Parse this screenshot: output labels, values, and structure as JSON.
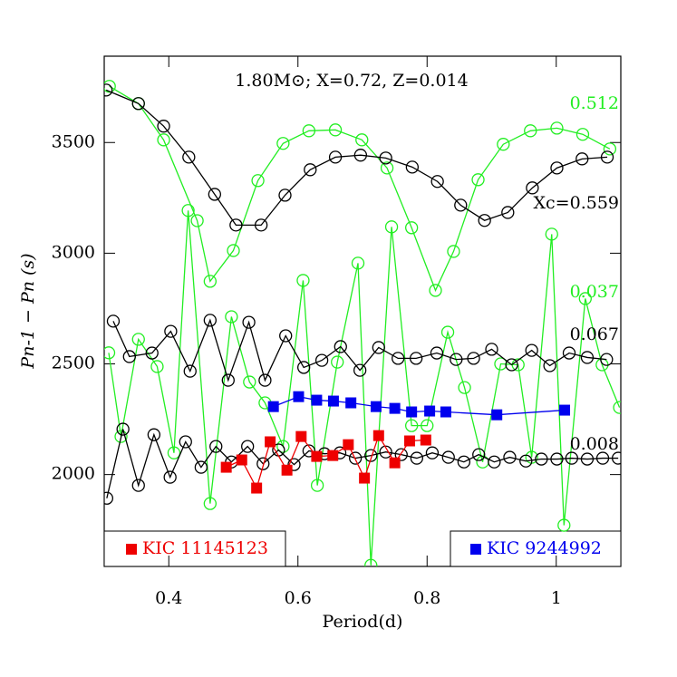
{
  "chart_data": {
    "type": "line",
    "title": "1.80M⊙; X=0.72, Z=0.014",
    "x_label": "Period(d)",
    "y_label": "Pn-1 − Pn (s)",
    "xlim": [
      0.3,
      1.1
    ],
    "ylim": [
      1585,
      3890
    ],
    "xticks": [
      0.4,
      0.6,
      0.8,
      1
    ],
    "yticks": [
      2000,
      2500,
      3000,
      3500
    ],
    "series": [
      {
        "name": "0.512",
        "color": "#22ee22",
        "marker": "circle",
        "x": [
          0.308,
          0.353,
          0.392,
          0.444,
          0.464,
          0.5,
          0.538,
          0.577,
          0.617,
          0.658,
          0.699,
          0.738,
          0.776,
          0.813,
          0.841,
          0.879,
          0.918,
          0.96,
          1.001,
          1.041,
          1.083
        ],
        "values": [
          3754,
          3676,
          3512,
          3147,
          2873,
          3012,
          3328,
          3496,
          3553,
          3557,
          3512,
          3385,
          3115,
          2832,
          3008,
          3332,
          3492,
          3553,
          3565,
          3537,
          3471
        ]
      },
      {
        "name": "Xc=0.559",
        "color": "#000000",
        "marker": "circle",
        "x": [
          0.303,
          0.353,
          0.392,
          0.431,
          0.471,
          0.504,
          0.543,
          0.58,
          0.619,
          0.658,
          0.697,
          0.736,
          0.777,
          0.816,
          0.852,
          0.889,
          0.925,
          0.963,
          1.001,
          1.04,
          1.079
        ],
        "values": [
          3737,
          3676,
          3574,
          3434,
          3266,
          3127,
          3127,
          3262,
          3377,
          3434,
          3443,
          3430,
          3389,
          3324,
          3217,
          3148,
          3184,
          3295,
          3385,
          3426,
          3434
        ]
      },
      {
        "name": "0.037",
        "color": "#22ee22",
        "marker": "circle",
        "x": [
          0.307,
          0.326,
          0.353,
          0.382,
          0.408,
          0.43,
          0.464,
          0.497,
          0.525,
          0.549,
          0.577,
          0.608,
          0.63,
          0.661,
          0.693,
          0.713,
          0.745,
          0.776,
          0.8,
          0.832,
          0.858,
          0.886,
          0.914,
          0.941,
          0.962,
          0.993,
          1.012,
          1.045,
          1.071,
          1.098
        ],
        "values": [
          2550,
          2172,
          2611,
          2488,
          2098,
          3193,
          1869,
          2713,
          2418,
          2324,
          2127,
          2877,
          1951,
          2508,
          2955,
          1590,
          3119,
          2221,
          2221,
          2643,
          2393,
          2057,
          2500,
          2496,
          2078,
          3086,
          1771,
          2795,
          2496,
          2303
        ]
      },
      {
        "name": "0.067",
        "color": "#000000",
        "marker": "circle",
        "x": [
          0.314,
          0.339,
          0.374,
          0.403,
          0.433,
          0.464,
          0.492,
          0.524,
          0.549,
          0.581,
          0.609,
          0.637,
          0.666,
          0.696,
          0.725,
          0.755,
          0.783,
          0.815,
          0.845,
          0.872,
          0.9,
          0.931,
          0.962,
          0.99,
          1.02,
          1.048,
          1.078
        ],
        "values": [
          2693,
          2533,
          2549,
          2647,
          2467,
          2697,
          2426,
          2688,
          2426,
          2627,
          2484,
          2516,
          2578,
          2471,
          2574,
          2525,
          2525,
          2549,
          2520,
          2525,
          2566,
          2496,
          2561,
          2492,
          2549,
          2529,
          2520
        ]
      },
      {
        "name": "0.008",
        "color": "#000000",
        "marker": "circle",
        "x": [
          0.304,
          0.329,
          0.353,
          0.377,
          0.402,
          0.426,
          0.45,
          0.473,
          0.497,
          0.522,
          0.546,
          0.57,
          0.594,
          0.617,
          0.641,
          0.665,
          0.689,
          0.713,
          0.736,
          0.76,
          0.784,
          0.808,
          0.833,
          0.857,
          0.88,
          0.904,
          0.928,
          0.953,
          0.977,
          1.001,
          1.024,
          1.048,
          1.072,
          1.096
        ],
        "values": [
          1893,
          2205,
          1951,
          2180,
          1988,
          2148,
          2033,
          2127,
          2057,
          2127,
          2049,
          2111,
          2045,
          2107,
          2094,
          2098,
          2074,
          2086,
          2102,
          2090,
          2074,
          2098,
          2078,
          2057,
          2090,
          2057,
          2078,
          2061,
          2070,
          2070,
          2074,
          2070,
          2074,
          2074
        ]
      },
      {
        "name": "KIC 11145123",
        "color": "#ee0000",
        "marker": "square",
        "x": [
          0.489,
          0.513,
          0.536,
          0.557,
          0.583,
          0.605,
          0.629,
          0.654,
          0.678,
          0.703,
          0.725,
          0.75,
          0.773,
          0.798
        ],
        "values": [
          2033,
          2066,
          1939,
          2148,
          2020,
          2172,
          2082,
          2086,
          2135,
          1984,
          2176,
          2053,
          2152,
          2156
        ]
      },
      {
        "name": "KIC 9244992",
        "color": "#0000ee",
        "marker": "square",
        "x": [
          0.562,
          0.601,
          0.629,
          0.655,
          0.682,
          0.721,
          0.75,
          0.776,
          0.804,
          0.829,
          0.908,
          1.013
        ],
        "values": [
          2307,
          2352,
          2336,
          2332,
          2324,
          2307,
          2299,
          2283,
          2287,
          2283,
          2270,
          2291
        ]
      }
    ]
  }
}
